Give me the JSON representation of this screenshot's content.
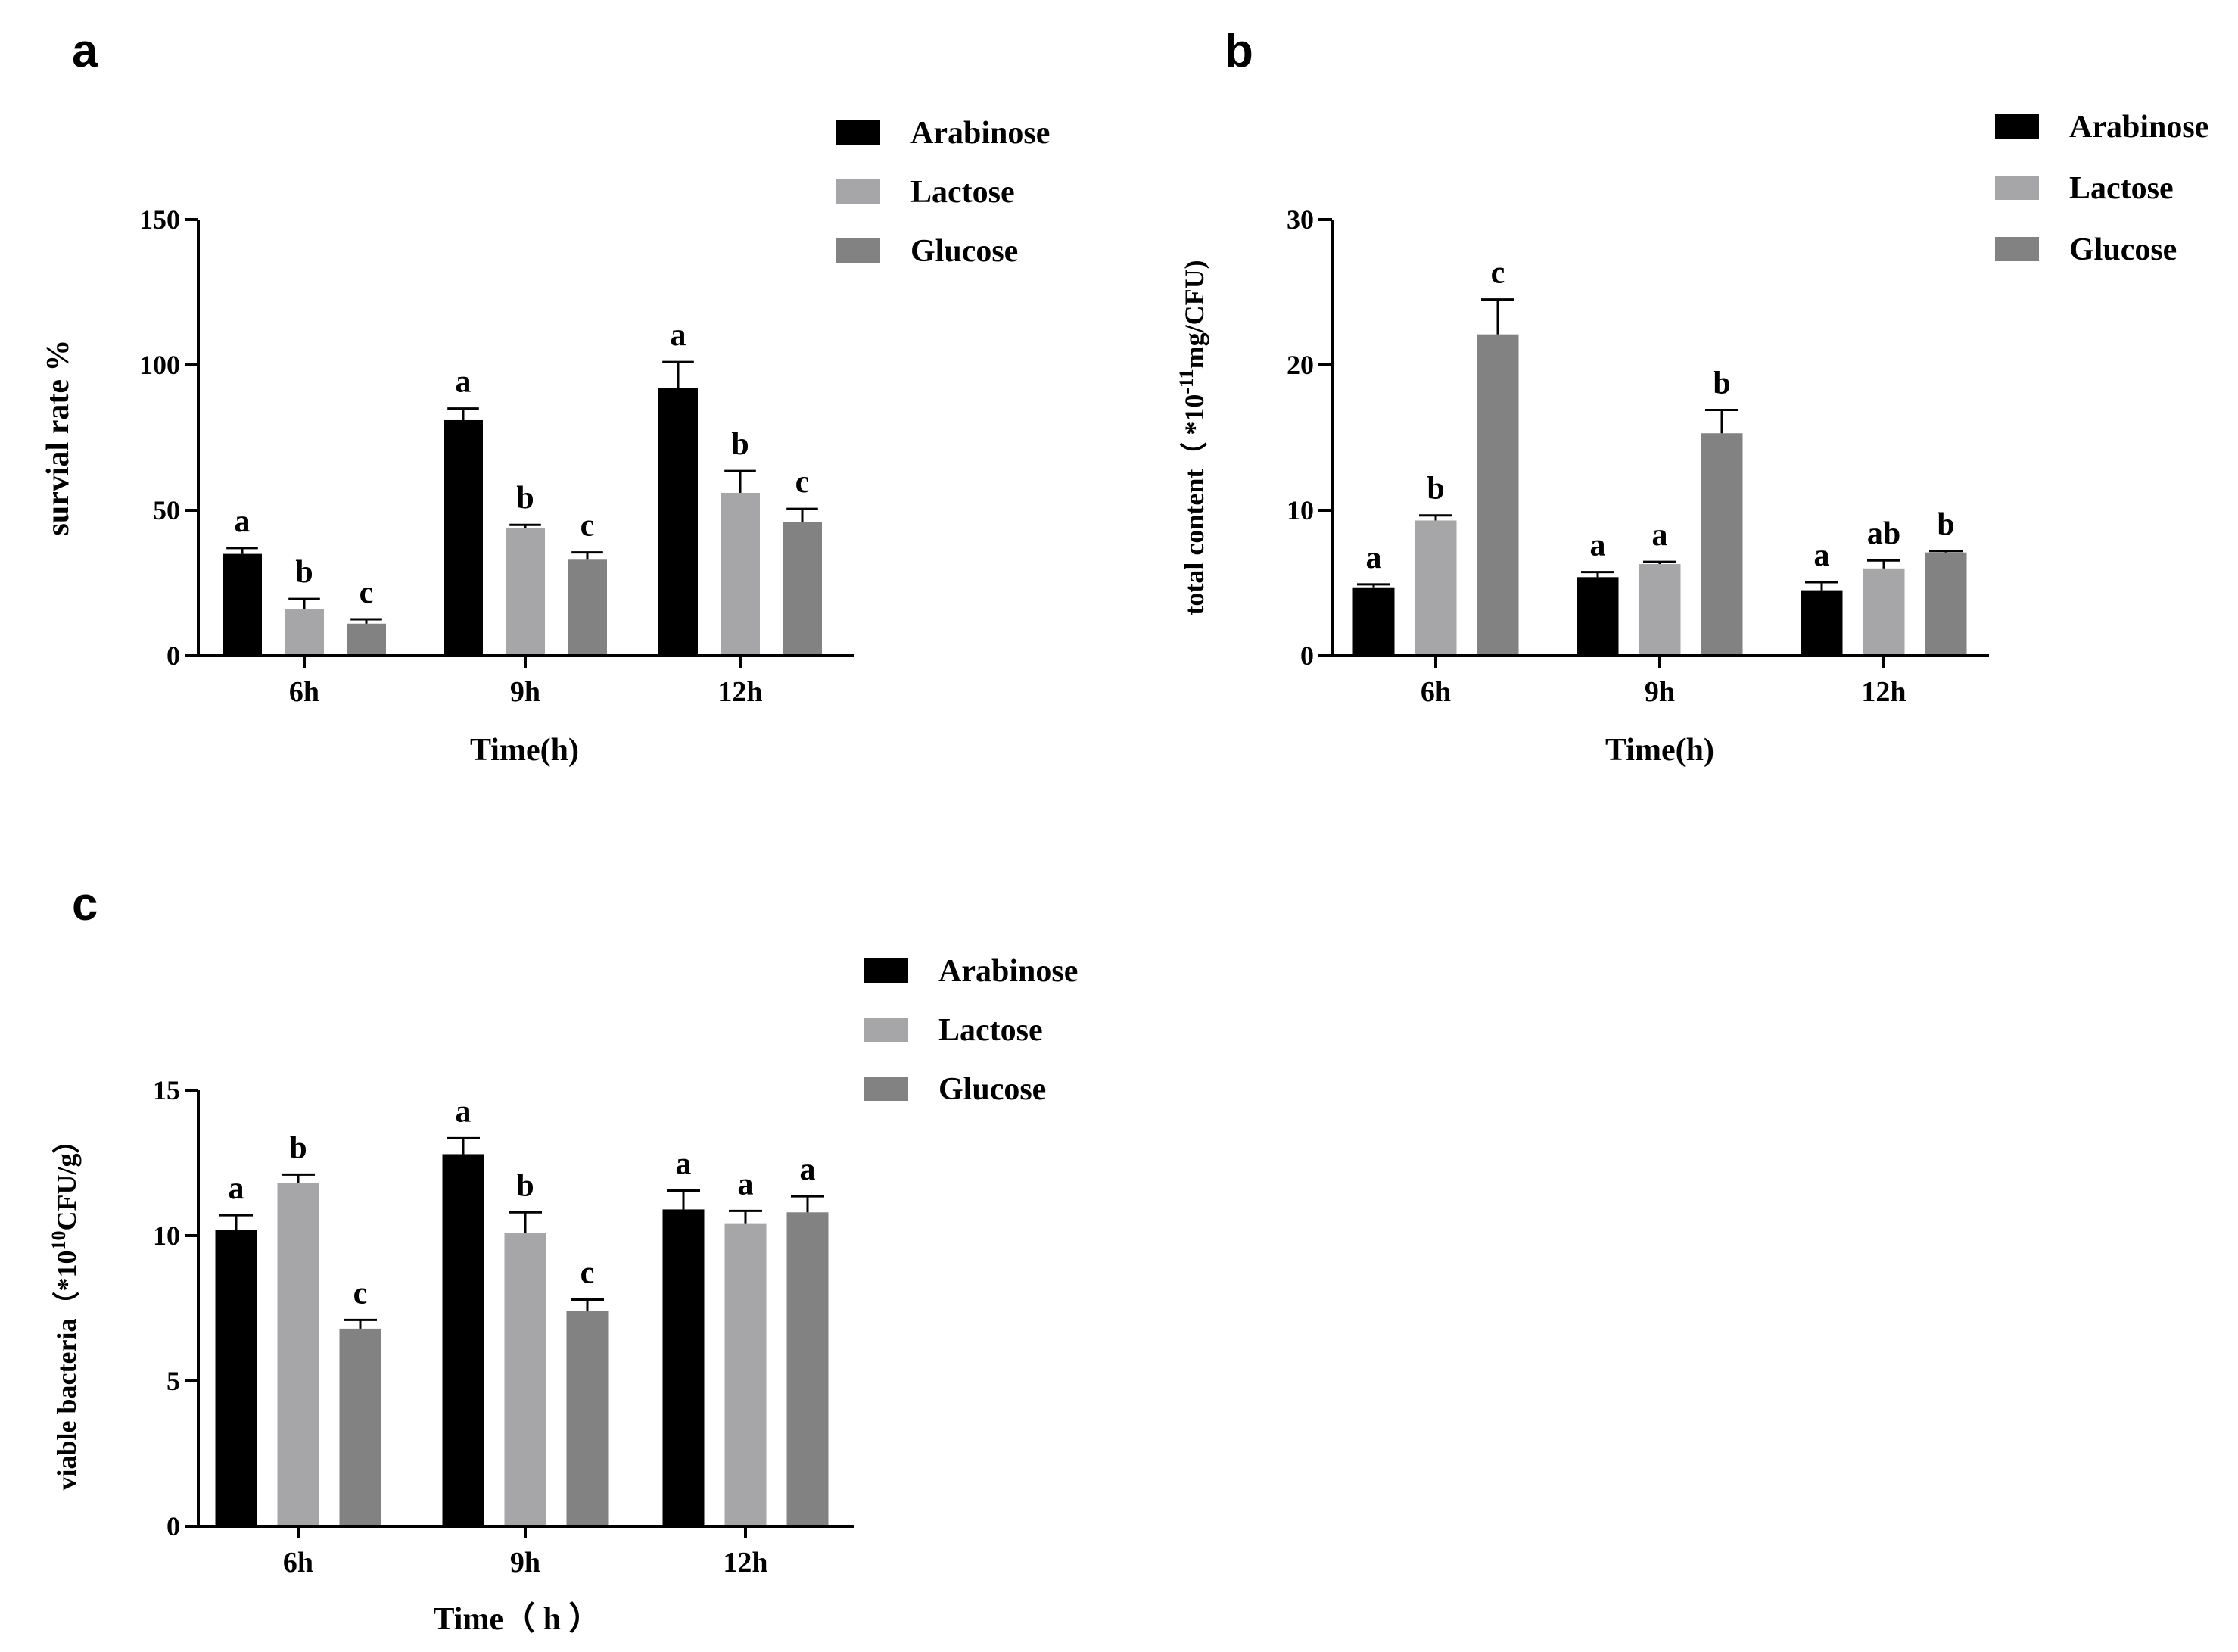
{
  "colors": {
    "Arabinose": "#000000",
    "Lactose": "#a6a6a8",
    "Glucose": "#828282"
  },
  "chart_data": [
    {
      "type": "bar",
      "panel": "a",
      "categories": [
        "6h",
        "9h",
        "12h"
      ],
      "xlabel": "Time(h)",
      "ylabel": "survial rate  %",
      "ylim": [
        0,
        150
      ],
      "yticks": [
        0,
        50,
        100,
        150
      ],
      "legend": {
        "placement": "top-right"
      },
      "series": [
        {
          "name": "Arabinose",
          "values": [
            35,
            81,
            92
          ],
          "errors": [
            2,
            4,
            9
          ],
          "letters": [
            "a",
            "a",
            "a"
          ]
        },
        {
          "name": "Lactose",
          "values": [
            16,
            44,
            56
          ],
          "errors": [
            3.5,
            1,
            7.5
          ],
          "letters": [
            "b",
            "b",
            "b"
          ]
        },
        {
          "name": "Glucose",
          "values": [
            11,
            33,
            46
          ],
          "errors": [
            1.5,
            2.5,
            4.5
          ],
          "letters": [
            "c",
            "c",
            "c"
          ]
        }
      ]
    },
    {
      "type": "bar",
      "panel": "b",
      "categories": [
        "6h",
        "9h",
        "12h"
      ],
      "xlabel": "Time(h)",
      "ylabel": "total content（ *10",
      "ylabel_sup": "-11",
      "ylabel_tail": "mg/CFU)",
      "ylim": [
        0,
        30
      ],
      "yticks": [
        0,
        10,
        20,
        30
      ],
      "legend": {
        "placement": "top-right"
      },
      "series": [
        {
          "name": "Arabinose",
          "values": [
            4.7,
            5.4,
            4.5
          ],
          "errors": [
            0.2,
            0.35,
            0.55
          ],
          "letters": [
            "a",
            "a",
            "a"
          ]
        },
        {
          "name": "Lactose",
          "values": [
            9.3,
            6.3,
            6.0
          ],
          "errors": [
            0.35,
            0.15,
            0.55
          ],
          "letters": [
            "b",
            "a",
            "ab"
          ]
        },
        {
          "name": "Glucose",
          "values": [
            22.1,
            15.3,
            7.1
          ],
          "errors": [
            2.4,
            1.6,
            0.1
          ],
          "letters": [
            "c",
            "b",
            "b"
          ]
        }
      ]
    },
    {
      "type": "bar",
      "panel": "c",
      "categories": [
        "6h",
        "9h",
        "12h"
      ],
      "xlabel": "Time（  h  ）",
      "ylabel": "viable bacteria（*10",
      "ylabel_sup": "10",
      "ylabel_tail": "CFU/g）",
      "ylim": [
        0,
        15
      ],
      "yticks": [
        0,
        5,
        10,
        15
      ],
      "legend": {
        "placement": "top-right"
      },
      "series": [
        {
          "name": "Arabinose",
          "values": [
            10.2,
            12.8,
            10.9
          ],
          "errors": [
            0.5,
            0.55,
            0.65
          ],
          "letters": [
            "a",
            "a",
            "a"
          ]
        },
        {
          "name": "Lactose",
          "values": [
            11.8,
            10.1,
            10.4
          ],
          "errors": [
            0.3,
            0.7,
            0.45
          ],
          "letters": [
            "b",
            "b",
            "a"
          ]
        },
        {
          "name": "Glucose",
          "values": [
            6.8,
            7.4,
            10.8
          ],
          "errors": [
            0.3,
            0.4,
            0.55
          ],
          "letters": [
            "c",
            "c",
            "a"
          ]
        }
      ]
    }
  ]
}
